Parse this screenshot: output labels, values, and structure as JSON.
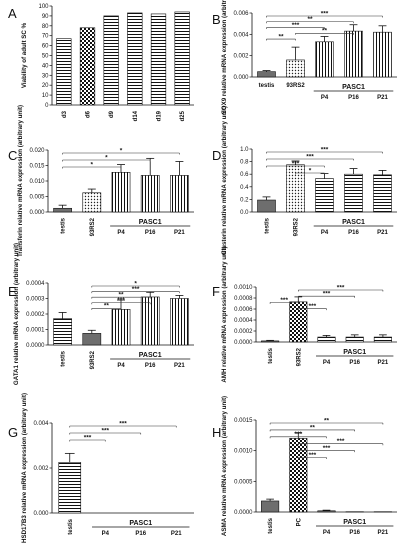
{
  "chart_data": [
    {
      "id": "A",
      "type": "bar",
      "panel_label": "A",
      "ylabel": "Viability of adult SC %",
      "categories": [
        "d3",
        "d6",
        "d9",
        "d14",
        "d19",
        "d25"
      ],
      "values": [
        67,
        78,
        90,
        93,
        92,
        94
      ],
      "errors": [
        0,
        0,
        0,
        0,
        0,
        0
      ],
      "ylim": [
        0,
        100
      ],
      "yticks": [
        "0",
        "10",
        "20",
        "30",
        "40",
        "50",
        "60",
        "70",
        "80",
        "90",
        "100"
      ],
      "xrot": true,
      "patterns": [
        "hstripes",
        "checker",
        "hstripes",
        "hstripes",
        "hstripes",
        "hstripes"
      ],
      "pasc_label": "",
      "sig": []
    },
    {
      "id": "B",
      "type": "bar",
      "panel_label": "B",
      "ylabel": "SOX9 relative mRNA expression (arbitrary unit)",
      "categories": [
        "testis",
        "93RS2",
        "P4",
        "P16",
        "P21"
      ],
      "values": [
        0.0005,
        0.0016,
        0.0033,
        0.0043,
        0.0042
      ],
      "errors": [
        0.0001,
        0.0012,
        0.0005,
        0.0006,
        0.0006
      ],
      "ylim": [
        0,
        0.006
      ],
      "yticks": [
        "0.000",
        "0.002",
        "0.004",
        "0.006"
      ],
      "xrot": false,
      "patterns": [
        "solid",
        "dots",
        "vstripes",
        "vstripes",
        "vstripes"
      ],
      "pasc_label": "PASC1",
      "sig": [
        {
          "from": 0,
          "to": 4,
          "text": "***"
        },
        {
          "from": 0,
          "to": 3,
          "text": "**"
        },
        {
          "from": 0,
          "to": 2,
          "text": "***"
        },
        {
          "from": 1,
          "to": 3,
          "text": "**"
        },
        {
          "from": 0,
          "to": 1,
          "text": "**"
        }
      ]
    },
    {
      "id": "C",
      "type": "bar",
      "panel_label": "C",
      "ylabel": "Transferin relative mRNA expression (arbitrary unit)",
      "categories": [
        "testis",
        "93RS2",
        "P4",
        "P16",
        "P21"
      ],
      "values": [
        0.0012,
        0.0062,
        0.0128,
        0.0118,
        0.0118
      ],
      "errors": [
        0.001,
        0.0012,
        0.0025,
        0.0055,
        0.0045
      ],
      "ylim": [
        0,
        0.02
      ],
      "yticks": [
        "0.000",
        "0.005",
        "0.010",
        "0.015",
        "0.020"
      ],
      "xrot": true,
      "patterns": [
        "solid",
        "dots",
        "vstripes",
        "vstripes",
        "vstripes"
      ],
      "pasc_label": "PASC1",
      "sig": [
        {
          "from": 0,
          "to": 4,
          "text": "*"
        },
        {
          "from": 0,
          "to": 3,
          "text": "*"
        },
        {
          "from": 0,
          "to": 2,
          "text": "*"
        }
      ]
    },
    {
      "id": "D",
      "type": "bar",
      "panel_label": "D",
      "ylabel": "Clusterin relative mRNA expression (arbitrary unit)",
      "categories": [
        "testis",
        "93RS2",
        "P4",
        "P16",
        "P21"
      ],
      "values": [
        0.19,
        0.75,
        0.53,
        0.6,
        0.59
      ],
      "errors": [
        0.05,
        0.06,
        0.08,
        0.09,
        0.07
      ],
      "ylim": [
        0,
        1.0
      ],
      "yticks": [
        "0.0",
        "0.2",
        "0.4",
        "0.6",
        "0.8",
        "1.0"
      ],
      "xrot": true,
      "patterns": [
        "solid",
        "dots",
        "hstripes",
        "hstripes",
        "hstripes"
      ],
      "pasc_label": "PASC1",
      "sig": [
        {
          "from": 0,
          "to": 4,
          "text": "***"
        },
        {
          "from": 0,
          "to": 3,
          "text": "***"
        },
        {
          "from": 0,
          "to": 2,
          "text": "***"
        },
        {
          "from": 1,
          "to": 2,
          "text": "*"
        }
      ]
    },
    {
      "id": "E",
      "type": "bar",
      "panel_label": "E",
      "ylabel": "GATA1 relative mRNA expression (arbitrary unit)",
      "categories": [
        "testis",
        "93RS2",
        "P4",
        "P16",
        "P21"
      ],
      "values": [
        0.00017,
        7.5e-05,
        0.00023,
        0.00031,
        0.0003
      ],
      "errors": [
        4e-05,
        2e-05,
        6e-05,
        3e-05,
        2e-05
      ],
      "ylim": [
        0,
        0.0004
      ],
      "yticks": [
        "0.0000",
        "0.0001",
        "0.0002",
        "0.0003",
        "0.0004"
      ],
      "xrot": true,
      "patterns": [
        "hstripes",
        "solid",
        "vstripes",
        "vstripes",
        "vstripes"
      ],
      "pasc_label": "PASC1",
      "sig": [
        {
          "from": 1,
          "to": 4,
          "text": "*"
        },
        {
          "from": 1,
          "to": 4,
          "text": "***"
        },
        {
          "from": 1,
          "to": 3,
          "text": "**"
        },
        {
          "from": 1,
          "to": 3,
          "text": "***"
        },
        {
          "from": 1,
          "to": 2,
          "text": "**"
        }
      ]
    },
    {
      "id": "F",
      "type": "bar",
      "panel_label": "F",
      "ylabel": "AMH relative mRNA expression (arbitrary unit)",
      "categories": [
        "testis",
        "93RS2",
        "P4",
        "P16",
        "P21"
      ],
      "values": [
        2e-05,
        0.00073,
        9e-05,
        9e-05,
        9e-05
      ],
      "errors": [
        1e-05,
        9e-05,
        3e-05,
        4e-05,
        4e-05
      ],
      "ylim": [
        0,
        0.001
      ],
      "yticks": [
        "0.0000",
        "0.0002",
        "0.0004",
        "0.0006",
        "0.0008",
        "0.0010"
      ],
      "xrot": true,
      "patterns": [
        "solid",
        "checker",
        "hstripes",
        "hstripes",
        "hstripes"
      ],
      "pasc_label": "PASC1",
      "sig": [
        {
          "from": 1,
          "to": 4,
          "text": "***"
        },
        {
          "from": 1,
          "to": 3,
          "text": "***"
        },
        {
          "from": 0,
          "to": 1,
          "text": "***"
        },
        {
          "from": 1,
          "to": 2,
          "text": "***"
        }
      ]
    },
    {
      "id": "G",
      "type": "bar",
      "panel_label": "G",
      "ylabel": "HSD17B3 relative mRNA expression (arbitrary unit)",
      "categories": [
        "testis",
        "P4",
        "P16",
        "P21"
      ],
      "values": [
        0.00225,
        0,
        0,
        0
      ],
      "errors": [
        0.0004,
        0,
        0,
        0
      ],
      "ylim": [
        0,
        0.004
      ],
      "yticks": [
        "0.000",
        "0.002",
        "0.004"
      ],
      "xrot": true,
      "patterns": [
        "hstripes",
        "none",
        "none",
        "none"
      ],
      "pasc_label": "PASC1",
      "sig": [
        {
          "from": 0,
          "to": 3,
          "text": "***"
        },
        {
          "from": 0,
          "to": 2,
          "text": "***"
        },
        {
          "from": 0,
          "to": 1,
          "text": "***"
        }
      ]
    },
    {
      "id": "H",
      "type": "bar",
      "panel_label": "H",
      "ylabel": "ASMA relative mRNA expression (arbitrary unit)",
      "categories": [
        "testis",
        "PC",
        "P4",
        "P16",
        "P21"
      ],
      "values": [
        0.00018,
        0.0012,
        2e-05,
        5e-06,
        5e-06
      ],
      "errors": [
        3e-05,
        9e-05,
        1e-05,
        0,
        0
      ],
      "ylim": [
        0,
        0.0015
      ],
      "yticks": [
        "0.0000",
        "0.0005",
        "0.0010",
        "0.0015"
      ],
      "xrot": true,
      "patterns": [
        "solid",
        "checker",
        "solid",
        "solid",
        "solid"
      ],
      "pasc_label": "PASC1",
      "sig": [
        {
          "from": 0,
          "to": 4,
          "text": "**"
        },
        {
          "from": 0,
          "to": 3,
          "text": "**"
        },
        {
          "from": 0,
          "to": 2,
          "text": "***"
        },
        {
          "from": 1,
          "to": 4,
          "text": "***"
        },
        {
          "from": 1,
          "to": 3,
          "text": "***"
        },
        {
          "from": 1,
          "to": 2,
          "text": "***"
        }
      ]
    }
  ]
}
